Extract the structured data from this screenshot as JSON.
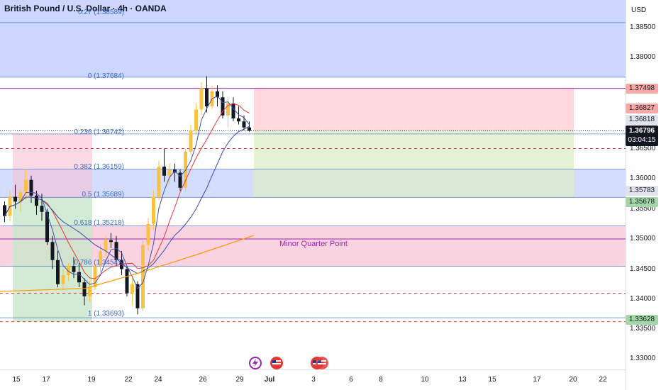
{
  "symbol_title": "British Pound / U.S. Dollar · 4h · OANDA",
  "currency": "USD",
  "price_axis": [
    "1.38500",
    "1.38000",
    "1.36500",
    "1.36000",
    "1.35500",
    "1.35000",
    "1.34500",
    "1.34000",
    "1.33500",
    "1.33000"
  ],
  "time_axis": [
    "15",
    "17",
    "19",
    "22",
    "24",
    "26",
    "29",
    "Jul",
    "3",
    "6",
    "8",
    "10",
    "13",
    "15",
    "17",
    "20",
    "22"
  ],
  "fib_levels": [
    {
      "label": "0.27 (1.38589)",
      "price": 1.38589
    },
    {
      "label": "0 (1.37684)",
      "price": 1.37684
    },
    {
      "label": "0.236 (1.36742)",
      "price": 1.36742
    },
    {
      "label": "0.382 (1.36159)",
      "price": 1.36159
    },
    {
      "label": "0.5 (1.35689)",
      "price": 1.35689
    },
    {
      "label": "0.618 (1.35218)",
      "price": 1.35218
    },
    {
      "label": "0.786 (1.34547)",
      "price": 1.34547
    },
    {
      "label": "1 (1.33693)",
      "price": 1.33693
    }
  ],
  "annotation": "Minor Quarter Point",
  "price_badges": [
    {
      "text": "1.37498",
      "price": 1.37498,
      "bg": "#f7a9a8",
      "fg": "#131722"
    },
    {
      "text": "1.36827",
      "price": 1.36827,
      "bg": "#f7a9a8",
      "fg": "#131722"
    },
    {
      "text": "1.36818",
      "price": 1.36818,
      "bg": "#e0e3eb",
      "fg": "#131722"
    },
    {
      "text": "1.35783",
      "price": 1.35783,
      "bg": "#e0e3eb",
      "fg": "#131722"
    },
    {
      "text": "1.35678",
      "price": 1.35678,
      "bg": "#a5d6a7",
      "fg": "#131722"
    },
    {
      "text": "1.33628",
      "price": 1.33628,
      "bg": "#a5d6a7",
      "fg": "#131722"
    }
  ],
  "last_price": {
    "price": "1.36796",
    "countdown": "03:04:15",
    "bg": "#131722",
    "fg": "#ffffff"
  },
  "colors": {
    "up": "#f6c344",
    "down": "#131722",
    "ma_red": "#e53935",
    "ma_blue": "#3f51b5",
    "ma_orange": "#ff9800",
    "fib_line": "#3a6ac9",
    "purple_line": "#9c27b0",
    "zone_blue": "#c3cfff",
    "zone_red": "#f8bbd0",
    "zone_green": "#c8e6c9",
    "tp_red": "#ffcdd2",
    "tp_green": "#dcedc8",
    "dashed_red": "#e53935"
  },
  "candles": [
    [
      1.3556,
      1.3562,
      1.3528,
      1.3538
    ],
    [
      1.3538,
      1.358,
      1.353,
      1.357
    ],
    [
      1.357,
      1.359,
      1.355,
      1.3562
    ],
    [
      1.3562,
      1.3582,
      1.3545,
      1.3578
    ],
    [
      1.3578,
      1.3616,
      1.3565,
      1.3598
    ],
    [
      1.3598,
      1.3605,
      1.356,
      1.3572
    ],
    [
      1.3572,
      1.358,
      1.354,
      1.3555
    ],
    [
      1.3555,
      1.3575,
      1.353,
      1.3545
    ],
    [
      1.3545,
      1.355,
      1.349,
      1.3495
    ],
    [
      1.3495,
      1.3505,
      1.345,
      1.3465
    ],
    [
      1.3465,
      1.348,
      1.342,
      1.3425
    ],
    [
      1.3425,
      1.345,
      1.3415,
      1.344
    ],
    [
      1.344,
      1.346,
      1.343,
      1.3455
    ],
    [
      1.3455,
      1.347,
      1.3435,
      1.3445
    ],
    [
      1.3445,
      1.346,
      1.342,
      1.3428
    ],
    [
      1.3428,
      1.3435,
      1.339,
      1.3405
    ],
    [
      1.3405,
      1.343,
      1.3395,
      1.342
    ],
    [
      1.342,
      1.346,
      1.3415,
      1.3455
    ],
    [
      1.3455,
      1.349,
      1.3445,
      1.348
    ],
    [
      1.348,
      1.3505,
      1.347,
      1.3498
    ],
    [
      1.3498,
      1.351,
      1.3485,
      1.3495
    ],
    [
      1.3495,
      1.3505,
      1.3455,
      1.3465
    ],
    [
      1.3465,
      1.348,
      1.344,
      1.345
    ],
    [
      1.345,
      1.3455,
      1.3405,
      1.341
    ],
    [
      1.341,
      1.3435,
      1.339,
      1.3425
    ],
    [
      1.3425,
      1.343,
      1.3375,
      1.3385
    ],
    [
      1.3385,
      1.35,
      1.338,
      1.349
    ],
    [
      1.349,
      1.3535,
      1.348,
      1.3525
    ],
    [
      1.3525,
      1.358,
      1.3515,
      1.357
    ],
    [
      1.357,
      1.363,
      1.3565,
      1.362
    ],
    [
      1.362,
      1.365,
      1.3595,
      1.3605
    ],
    [
      1.3605,
      1.3625,
      1.359,
      1.3615
    ],
    [
      1.3615,
      1.3625,
      1.3595,
      1.361
    ],
    [
      1.361,
      1.3615,
      1.358,
      1.3585
    ],
    [
      1.3585,
      1.365,
      1.358,
      1.3645
    ],
    [
      1.3645,
      1.369,
      1.364,
      1.368
    ],
    [
      1.368,
      1.3725,
      1.3675,
      1.3715
    ],
    [
      1.3715,
      1.376,
      1.3705,
      1.375
    ],
    [
      1.375,
      1.377,
      1.371,
      1.372
    ],
    [
      1.372,
      1.3755,
      1.3715,
      1.3745
    ],
    [
      1.3745,
      1.3755,
      1.372,
      1.3735
    ],
    [
      1.3735,
      1.3745,
      1.37,
      1.3705
    ],
    [
      1.3705,
      1.3735,
      1.3685,
      1.3725
    ],
    [
      1.3725,
      1.3735,
      1.3695,
      1.37
    ],
    [
      1.37,
      1.372,
      1.369,
      1.3695
    ],
    [
      1.3695,
      1.3705,
      1.368,
      1.3685
    ],
    [
      1.3685,
      1.3695,
      1.3678,
      1.36796
    ]
  ]
}
